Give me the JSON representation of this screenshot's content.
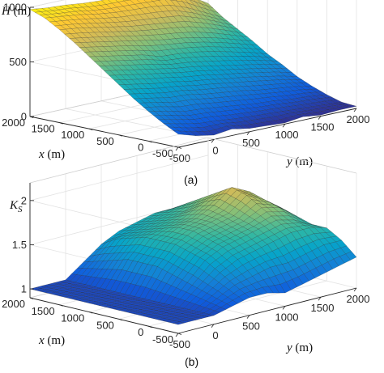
{
  "colormap": [
    "#352a87",
    "#0f5cdd",
    "#1481d6",
    "#06a4ca",
    "#2eb7a4",
    "#87bf77",
    "#d1bb59",
    "#fec832",
    "#f9fb0e"
  ],
  "chart_data": [
    {
      "type": "surface3d",
      "panel_caption": "(a)",
      "zlabel_symbol": "H",
      "zlabel_unit": " (m)",
      "xlabel_symbol": "x",
      "xlabel_unit": " (m)",
      "ylabel_symbol": "y",
      "ylabel_unit": " (m)",
      "x_ticks": [
        "-500",
        "0",
        "500",
        "1000",
        "1500",
        "2000"
      ],
      "y_ticks": [
        "-500",
        "0",
        "500",
        "1000",
        "1500",
        "2000"
      ],
      "z_ticks": [
        "0",
        "500",
        "1000"
      ],
      "xlim": [
        -500,
        2000
      ],
      "ylim": [
        -500,
        2000
      ],
      "zlim": [
        0,
        1000
      ],
      "grid": true,
      "x": [
        -500,
        -250,
        0,
        250,
        500,
        750,
        1000,
        1250,
        1500,
        1750,
        2000
      ],
      "y": [
        -500,
        -250,
        0,
        250,
        500,
        750,
        1000,
        1250,
        1500,
        1750,
        2000
      ],
      "z": [
        [
          120,
          70,
          40,
          60,
          30,
          20,
          10,
          30,
          10,
          20,
          20
        ],
        [
          190,
          150,
          120,
          110,
          90,
          80,
          70,
          60,
          50,
          40,
          30
        ],
        [
          270,
          240,
          200,
          190,
          170,
          150,
          130,
          120,
          100,
          90,
          70
        ],
        [
          360,
          330,
          300,
          290,
          260,
          240,
          220,
          190,
          170,
          150,
          120
        ],
        [
          460,
          430,
          400,
          380,
          350,
          330,
          300,
          280,
          250,
          220,
          180
        ],
        [
          560,
          530,
          500,
          470,
          440,
          420,
          390,
          360,
          330,
          300,
          260
        ],
        [
          660,
          630,
          600,
          570,
          520,
          510,
          490,
          460,
          420,
          380,
          330
        ],
        [
          760,
          730,
          700,
          670,
          640,
          610,
          590,
          560,
          520,
          470,
          420
        ],
        [
          850,
          830,
          800,
          770,
          740,
          720,
          700,
          680,
          630,
          570,
          500
        ],
        [
          930,
          910,
          890,
          860,
          840,
          830,
          820,
          800,
          740,
          660,
          580
        ],
        [
          980,
          960,
          950,
          930,
          920,
          920,
          910,
          930,
          880,
          780,
          680
        ]
      ]
    },
    {
      "type": "surface3d",
      "panel_caption": "(b)",
      "zlabel_symbol": "K",
      "zlabel_sub": "S",
      "xlabel_symbol": "x",
      "xlabel_unit": " (m)",
      "ylabel_symbol": "y",
      "ylabel_unit": " (m)",
      "x_ticks": [
        "-500",
        "0",
        "500",
        "1000",
        "1500",
        "2000"
      ],
      "y_ticks": [
        "-500",
        "0",
        "500",
        "1000",
        "1500",
        "2000"
      ],
      "z_ticks": [
        "1",
        "1.5",
        "2"
      ],
      "xlim": [
        -500,
        2000
      ],
      "ylim": [
        -500,
        2000
      ],
      "zlim": [
        0.9,
        2.2
      ],
      "grid": true,
      "x": [
        -500,
        -250,
        0,
        250,
        500,
        750,
        1000,
        1250,
        1500,
        1750,
        2000
      ],
      "y": [
        -500,
        -250,
        0,
        250,
        500,
        750,
        1000,
        1250,
        1500,
        1750,
        2000
      ],
      "z": [
        [
          1.0,
          1.0,
          1.0,
          1.05,
          1.1,
          1.1,
          1.05,
          1.1,
          1.15,
          1.2,
          1.25
        ],
        [
          1.0,
          1.0,
          1.0,
          1.1,
          1.2,
          1.25,
          1.3,
          1.3,
          1.35,
          1.4,
          1.4
        ],
        [
          1.0,
          1.0,
          1.0,
          1.15,
          1.3,
          1.4,
          1.45,
          1.5,
          1.55,
          1.55,
          1.5
        ],
        [
          1.0,
          1.0,
          1.0,
          1.2,
          1.4,
          1.5,
          1.55,
          1.6,
          1.65,
          1.6,
          1.5
        ],
        [
          1.0,
          1.0,
          1.0,
          1.25,
          1.45,
          1.55,
          1.6,
          1.65,
          1.75,
          1.7,
          1.55
        ],
        [
          1.0,
          1.0,
          1.0,
          1.3,
          1.5,
          1.6,
          1.65,
          1.7,
          1.85,
          1.75,
          1.6
        ],
        [
          1.0,
          1.0,
          1.0,
          1.3,
          1.5,
          1.6,
          1.65,
          1.75,
          1.9,
          1.8,
          1.6
        ],
        [
          1.0,
          1.0,
          1.0,
          1.3,
          1.5,
          1.55,
          1.6,
          1.7,
          1.8,
          1.75,
          1.55
        ],
        [
          1.0,
          1.0,
          1.0,
          1.25,
          1.45,
          1.5,
          1.55,
          1.6,
          1.7,
          1.65,
          1.5
        ],
        [
          1.0,
          1.0,
          1.0,
          1.2,
          1.4,
          1.45,
          1.5,
          1.55,
          1.6,
          1.55,
          1.45
        ],
        [
          1.0,
          1.0,
          1.0,
          1.15,
          1.3,
          1.4,
          1.45,
          1.5,
          1.5,
          1.45,
          1.4
        ]
      ]
    }
  ]
}
